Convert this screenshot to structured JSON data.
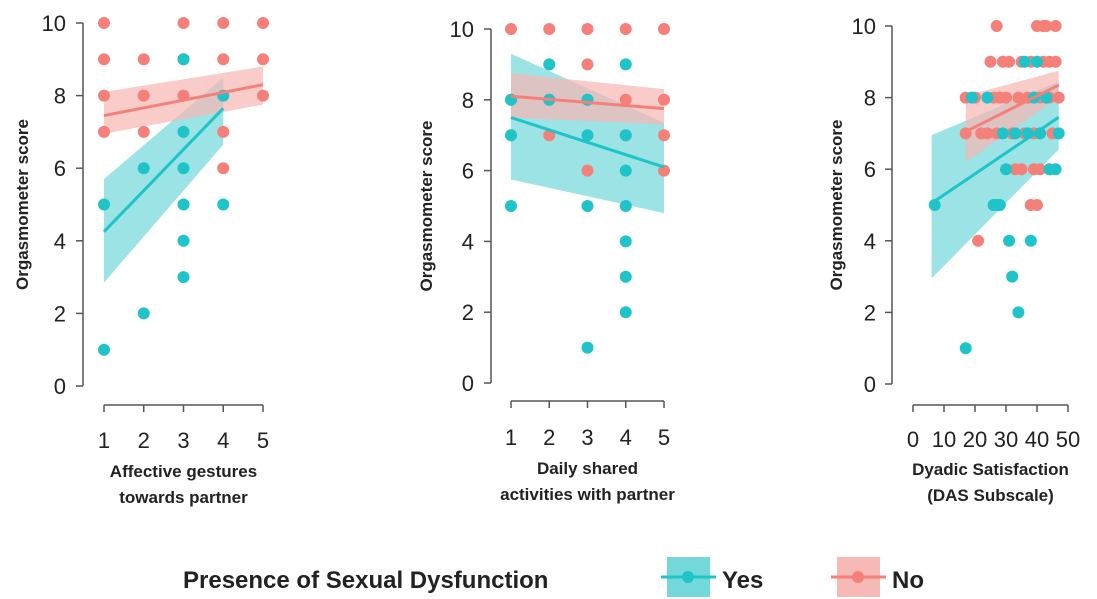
{
  "colors": {
    "yes": "#1ec4c8",
    "no": "#f5807a",
    "yes_band": "#74d8da",
    "no_band": "#f7b9b5",
    "axis": "#555555"
  },
  "legend": {
    "title": "Presence of Sexual Dysfunction",
    "items": [
      {
        "label": "Yes",
        "key": "yes"
      },
      {
        "label": "No",
        "key": "no"
      }
    ]
  },
  "chart_data": [
    {
      "type": "scatter",
      "ylabel": "Orgasmometer score",
      "xlabel_lines": [
        "Affective gestures",
        "towards partner"
      ],
      "xlim": [
        1,
        5
      ],
      "ylim": [
        0,
        10
      ],
      "x_ticks": [
        "1",
        "2",
        "3",
        "4",
        "5"
      ],
      "y_ticks": [
        "0",
        "2",
        "4",
        "6",
        "8",
        "10"
      ],
      "series": [
        {
          "name": "Yes",
          "key": "yes",
          "points": [
            [
              1,
              5
            ],
            [
              1,
              1
            ],
            [
              2,
              6
            ],
            [
              2,
              2
            ],
            [
              3,
              9
            ],
            [
              3,
              7
            ],
            [
              3,
              6
            ],
            [
              3,
              5
            ],
            [
              3,
              4
            ],
            [
              3,
              3
            ],
            [
              4,
              8
            ],
            [
              4,
              5
            ]
          ],
          "fit": {
            "x": [
              1,
              4
            ],
            "y": [
              4.25,
              7.65
            ],
            "lower": [
              2.85,
              6.65
            ],
            "upper": [
              5.7,
              8.5
            ]
          }
        },
        {
          "name": "No",
          "key": "no",
          "points": [
            [
              1,
              10
            ],
            [
              1,
              9
            ],
            [
              1,
              8
            ],
            [
              1,
              7
            ],
            [
              2,
              9
            ],
            [
              2,
              8
            ],
            [
              2,
              7
            ],
            [
              3,
              10
            ],
            [
              3,
              9
            ],
            [
              3,
              8
            ],
            [
              4,
              10
            ],
            [
              4,
              9
            ],
            [
              4,
              7
            ],
            [
              4,
              6
            ],
            [
              5,
              10
            ],
            [
              5,
              9
            ],
            [
              5,
              8
            ]
          ],
          "fit": {
            "x": [
              1,
              5
            ],
            "y": [
              7.45,
              8.3
            ],
            "lower": [
              6.95,
              7.75
            ],
            "upper": [
              8.1,
              8.8
            ]
          }
        }
      ]
    },
    {
      "type": "scatter",
      "ylabel": "Orgasmometer score",
      "xlabel_lines": [
        "Daily shared",
        "activities with partner"
      ],
      "xlim": [
        1,
        5
      ],
      "ylim": [
        0,
        10
      ],
      "x_ticks": [
        "1",
        "2",
        "3",
        "4",
        "5"
      ],
      "y_ticks": [
        "0",
        "2",
        "4",
        "6",
        "8",
        "10"
      ],
      "series": [
        {
          "name": "Yes",
          "key": "yes",
          "points": [
            [
              1,
              8
            ],
            [
              1,
              7
            ],
            [
              1,
              5
            ],
            [
              2,
              9
            ],
            [
              2,
              8
            ],
            [
              3,
              8
            ],
            [
              3,
              7
            ],
            [
              3,
              5
            ],
            [
              3,
              1
            ],
            [
              4,
              9
            ],
            [
              4,
              7
            ],
            [
              4,
              6
            ],
            [
              4,
              5
            ],
            [
              4,
              4
            ],
            [
              4,
              3
            ],
            [
              4,
              2
            ]
          ],
          "fit": {
            "x": [
              1,
              5
            ],
            "y": [
              7.5,
              6.1
            ],
            "lower": [
              5.75,
              4.8
            ],
            "upper": [
              9.3,
              7.35
            ]
          }
        },
        {
          "name": "No",
          "key": "no",
          "points": [
            [
              1,
              10
            ],
            [
              1,
              8
            ],
            [
              1,
              7
            ],
            [
              2,
              10
            ],
            [
              2,
              8
            ],
            [
              2,
              7
            ],
            [
              3,
              10
            ],
            [
              3,
              9
            ],
            [
              3,
              8
            ],
            [
              3,
              6
            ],
            [
              4,
              10
            ],
            [
              4,
              8
            ],
            [
              4,
              7
            ],
            [
              5,
              10
            ],
            [
              5,
              8
            ],
            [
              5,
              7
            ],
            [
              5,
              6
            ]
          ],
          "fit": {
            "x": [
              1,
              5
            ],
            "y": [
              8.1,
              7.75
            ],
            "lower": [
              7.5,
              7.3
            ],
            "upper": [
              8.75,
              8.3
            ]
          }
        }
      ]
    },
    {
      "type": "scatter",
      "ylabel": "Orgasmometer score",
      "xlabel_lines": [
        "Dyadic Satisfaction",
        "(DAS Subscale)"
      ],
      "xlim": [
        0,
        50
      ],
      "ylim": [
        0,
        10
      ],
      "x_tick_values": [
        0,
        10,
        20,
        30,
        40,
        50
      ],
      "x_ticks": [
        "0",
        "10",
        "20",
        "30",
        "40",
        "50"
      ],
      "y_ticks": [
        "0",
        "2",
        "4",
        "6",
        "8",
        "10"
      ],
      "series": [
        {
          "name": "Yes",
          "key": "yes",
          "points": [
            [
              7,
              5
            ],
            [
              17,
              1
            ],
            [
              19,
              8
            ],
            [
              24,
              8
            ],
            [
              26,
              5
            ],
            [
              27,
              5
            ],
            [
              28,
              5
            ],
            [
              29,
              7
            ],
            [
              30,
              6
            ],
            [
              31,
              4
            ],
            [
              32,
              3
            ],
            [
              33,
              7
            ],
            [
              34,
              2
            ],
            [
              36,
              9
            ],
            [
              37,
              7
            ],
            [
              38,
              4
            ],
            [
              39,
              8
            ],
            [
              40,
              9
            ],
            [
              41,
              7
            ],
            [
              43,
              8
            ],
            [
              44,
              6
            ],
            [
              46,
              6
            ],
            [
              47,
              7
            ]
          ],
          "fit": {
            "x": [
              6,
              47
            ],
            "y": [
              5.05,
              7.45
            ],
            "lower": [
              2.95,
              6.55
            ],
            "upper": [
              6.95,
              8.45
            ]
          }
        },
        {
          "name": "No",
          "key": "no",
          "points": [
            [
              17,
              8
            ],
            [
              17,
              7
            ],
            [
              20,
              8
            ],
            [
              21,
              4
            ],
            [
              22,
              7
            ],
            [
              24,
              7
            ],
            [
              25,
              9
            ],
            [
              26,
              8
            ],
            [
              27,
              7
            ],
            [
              27,
              10
            ],
            [
              28,
              8
            ],
            [
              29,
              9
            ],
            [
              30,
              8
            ],
            [
              31,
              9
            ],
            [
              32,
              7
            ],
            [
              33,
              6
            ],
            [
              34,
              8
            ],
            [
              35,
              9
            ],
            [
              35,
              6
            ],
            [
              36,
              7
            ],
            [
              37,
              8
            ],
            [
              38,
              5
            ],
            [
              38,
              9
            ],
            [
              39,
              7
            ],
            [
              39,
              6
            ],
            [
              40,
              5
            ],
            [
              40,
              10
            ],
            [
              41,
              8
            ],
            [
              41,
              6
            ],
            [
              42,
              10
            ],
            [
              42,
              9
            ],
            [
              43,
              10
            ],
            [
              44,
              8
            ],
            [
              44,
              9
            ],
            [
              45,
              7
            ],
            [
              46,
              10
            ],
            [
              46,
              9
            ],
            [
              47,
              8
            ]
          ],
          "fit": {
            "x": [
              17,
              47
            ],
            "y": [
              7.05,
              8.35
            ],
            "lower": [
              6.2,
              8.0
            ],
            "upper": [
              8.05,
              8.75
            ]
          }
        }
      ]
    }
  ]
}
